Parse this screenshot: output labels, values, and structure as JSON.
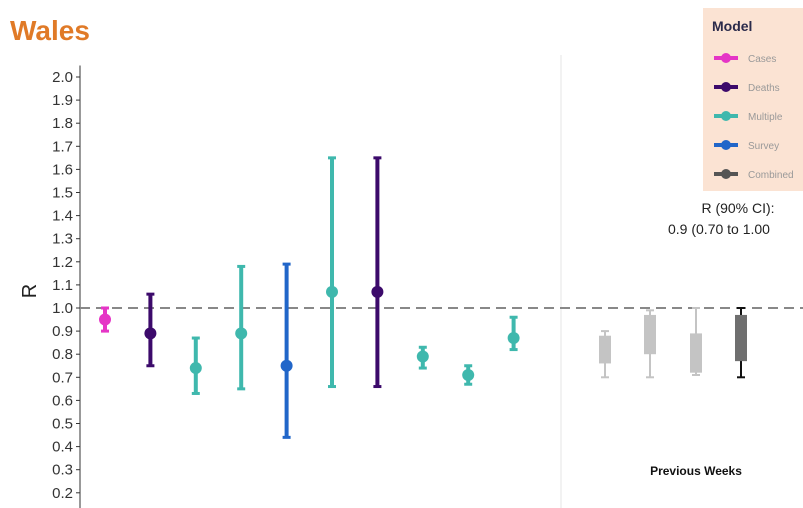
{
  "title": "Wales",
  "chart_data": {
    "type": "errorbar",
    "ylabel": "R",
    "ylim": [
      0.15,
      2.05
    ],
    "yticks": [
      0.2,
      0.3,
      0.4,
      0.5,
      0.6,
      0.7,
      0.8,
      0.9,
      1.0,
      1.1,
      1.2,
      1.3,
      1.4,
      1.5,
      1.6,
      1.7,
      1.8,
      1.9,
      2.0
    ],
    "reference_line": 1.0,
    "grid": false,
    "estimates": [
      {
        "model": "Cases",
        "value": 0.95,
        "low": 0.9,
        "high": 1.0
      },
      {
        "model": "Deaths",
        "value": 0.89,
        "low": 0.75,
        "high": 1.06
      },
      {
        "model": "Multiple",
        "value": 0.74,
        "low": 0.63,
        "high": 0.87
      },
      {
        "model": "Multiple",
        "value": 0.89,
        "low": 0.65,
        "high": 1.18
      },
      {
        "model": "Survey",
        "value": 0.75,
        "low": 0.44,
        "high": 1.19
      },
      {
        "model": "Multiple",
        "value": 1.07,
        "low": 0.66,
        "high": 1.65
      },
      {
        "model": "Deaths",
        "value": 1.07,
        "low": 0.66,
        "high": 1.65
      },
      {
        "model": "Multiple",
        "value": 0.79,
        "low": 0.74,
        "high": 0.83
      },
      {
        "model": "Multiple",
        "value": 0.71,
        "low": 0.67,
        "high": 0.75
      },
      {
        "model": "Multiple",
        "value": 0.87,
        "low": 0.82,
        "high": 0.96
      }
    ],
    "previous_weeks": [
      {
        "low": 0.7,
        "high": 0.9,
        "box_low": 0.76,
        "box_high": 0.88,
        "shade": "light"
      },
      {
        "low": 0.7,
        "high": 0.99,
        "box_low": 0.8,
        "box_high": 0.97,
        "shade": "light"
      },
      {
        "low": 0.71,
        "high": 1.0,
        "box_low": 0.72,
        "box_high": 0.89,
        "shade": "light"
      },
      {
        "low": 0.7,
        "high": 1.0,
        "box_low": 0.77,
        "box_high": 0.97,
        "shade": "dark"
      }
    ],
    "previous_weeks_label": "Previous Weeks",
    "combined_label_line1": "R (90% CI):",
    "combined_label_line2": "0.9 (0.70 to 1.00",
    "legend": {
      "title": "Model",
      "placement": "top-right",
      "entries": [
        {
          "name": "Cases",
          "color": "#e535c6"
        },
        {
          "name": "Deaths",
          "color": "#3c0a6b"
        },
        {
          "name": "Multiple",
          "color": "#3fb8ad"
        },
        {
          "name": "Survey",
          "color": "#2166c9"
        },
        {
          "name": "Combined",
          "color": "#555555"
        }
      ]
    }
  },
  "colors": {
    "title": "#e07a27",
    "Cases": "#e535c6",
    "Deaths": "#3c0a6b",
    "Multiple": "#3fb8ad",
    "Survey": "#2166c9",
    "Combined": "#555555",
    "prev_light": "#c4c4c4",
    "prev_dark": "#6f6f6f",
    "legend_bg": "#fbe3d3",
    "reference": "#888888"
  }
}
